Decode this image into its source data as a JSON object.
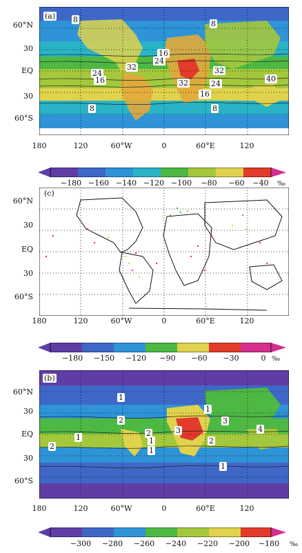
{
  "colors": {
    "map_scale": [
      "#5e3ea5",
      "#3f67c7",
      "#2f93d7",
      "#2ab3c6",
      "#4db844",
      "#a4c83c",
      "#e0d24c",
      "#e2a83b",
      "#e23a2b",
      "#d52e8f"
    ],
    "ocean": "#2b8fd6",
    "land_line": "#101010",
    "contour": "#202020"
  },
  "axes": {
    "lat_labels": [
      "60°N",
      "30",
      "EQ",
      "30",
      "60°S"
    ],
    "lon_labels": [
      "180",
      "120",
      "60°W",
      "0",
      "60°E",
      "120"
    ]
  },
  "panels": [
    {
      "label": "(a)",
      "contour_labels": [
        "8",
        "8",
        "16",
        "24",
        "32",
        "24",
        "16",
        "32",
        "32",
        "24",
        "16",
        "40",
        "8",
        "8"
      ],
      "colorbar": {
        "ticks": [
          "−180",
          "−160",
          "−140",
          "−120",
          "−100",
          "−80",
          "−60",
          "−40"
        ],
        "unit": "‰"
      }
    },
    {
      "label": "(c)",
      "colorbar": {
        "ticks": [
          "−180",
          "−150",
          "−120",
          "−90",
          "−60",
          "−30",
          "0"
        ],
        "unit": "‰"
      }
    },
    {
      "label": "(b)",
      "contour_labels": [
        "1",
        "1",
        "2",
        "1",
        "2",
        "2",
        "3",
        "1",
        "3",
        "4",
        "2",
        "1",
        "1"
      ],
      "colorbar": {
        "ticks": [
          "−300",
          "−280",
          "−260",
          "−240",
          "−220",
          "−200",
          "−180"
        ],
        "unit": "‰"
      }
    }
  ],
  "chart_data": [
    {
      "type": "heatmap",
      "title": "",
      "xlabel": "",
      "ylabel": "",
      "x_ticks": [
        "180",
        "120",
        "60°W",
        "0",
        "60°E",
        "120"
      ],
      "y_ticks": [
        "60°N",
        "30",
        "EQ",
        "30",
        "60°S"
      ],
      "colorbar_ticks": [
        -180,
        -160,
        -140,
        -120,
        -100,
        -80,
        -60,
        -40
      ],
      "unit": "‰"
    },
    {
      "type": "scatter",
      "title": "",
      "xlabel": "",
      "ylabel": "",
      "x_ticks": [
        "180",
        "120",
        "60°W",
        "0",
        "60°E",
        "120"
      ],
      "y_ticks": [
        "60°N",
        "30",
        "EQ",
        "30",
        "60°S"
      ],
      "colorbar_ticks": [
        -180,
        -150,
        -120,
        -90,
        -60,
        -30,
        0
      ],
      "unit": "‰"
    },
    {
      "type": "heatmap",
      "title": "",
      "xlabel": "",
      "ylabel": "",
      "x_ticks": [
        "180",
        "120",
        "60°W",
        "0",
        "60°E",
        "120"
      ],
      "y_ticks": [
        "60°N",
        "30",
        "EQ",
        "30",
        "60°S"
      ],
      "colorbar_ticks": [
        -300,
        -280,
        -260,
        -240,
        -220,
        -200,
        -180
      ],
      "unit": "‰"
    }
  ]
}
